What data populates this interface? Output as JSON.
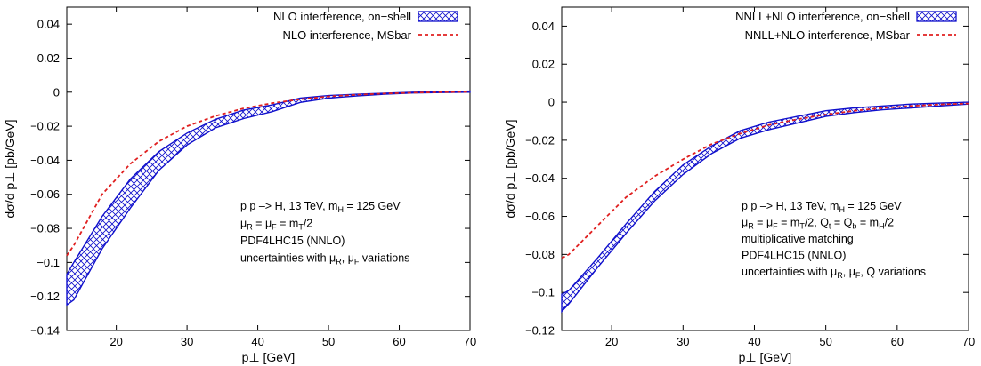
{
  "chart_data": [
    {
      "type": "line",
      "xlabel": "p⊥ [GeV]",
      "ylabel": "dσ/d p⊥ [pb/GeV]",
      "xlim": [
        13,
        70
      ],
      "ylim": [
        -0.14,
        0.05
      ],
      "xticks": [
        20,
        30,
        40,
        50,
        60,
        70
      ],
      "yticks": [
        -0.14,
        -0.12,
        -0.1,
        -0.08,
        -0.06,
        -0.04,
        -0.02,
        0,
        0.02,
        0.04
      ],
      "ytick_labels": [
        "−0.14",
        "−0.12",
        "−0.1",
        "−0.08",
        "−0.06",
        "−0.04",
        "−0.02",
        "0",
        "0.02",
        "0.04"
      ],
      "legend_position": "top-right",
      "series": [
        {
          "name": "NLO interference, on−shell",
          "kind": "band",
          "color": "#1010cc",
          "x": [
            13,
            14,
            18,
            22,
            26,
            30,
            34,
            38,
            42,
            46,
            50,
            54,
            58,
            62,
            66,
            70
          ],
          "lower": [
            -0.125,
            -0.122,
            -0.092,
            -0.068,
            -0.046,
            -0.031,
            -0.021,
            -0.0155,
            -0.0115,
            -0.006,
            -0.0035,
            -0.0022,
            -0.0012,
            -0.0005,
            -0.0002,
            0.0
          ],
          "upper": [
            -0.107,
            -0.1,
            -0.073,
            -0.051,
            -0.035,
            -0.024,
            -0.016,
            -0.0105,
            -0.0075,
            -0.0035,
            -0.002,
            -0.0012,
            -0.0006,
            0.0,
            0.0003,
            0.0006
          ]
        },
        {
          "name": "NLO interference, MSbar",
          "kind": "line",
          "style": "dashed",
          "color": "#e02020",
          "x": [
            13,
            14,
            18,
            22,
            26,
            30,
            34,
            38,
            42,
            46,
            50,
            54,
            58,
            62,
            66,
            70
          ],
          "y": [
            -0.096,
            -0.09,
            -0.06,
            -0.042,
            -0.029,
            -0.02,
            -0.014,
            -0.0095,
            -0.0065,
            -0.0042,
            -0.0025,
            -0.0015,
            -0.0008,
            -0.0003,
            0.0,
            0.0002
          ]
        }
      ],
      "annotation_lines": [
        {
          "parts": [
            [
              "p p –> H, 13 TeV, m",
              ""
            ],
            [
              "H",
              "sub"
            ],
            [
              " = 125 GeV",
              ""
            ]
          ]
        },
        {
          "parts": [
            [
              "μ",
              ""
            ],
            [
              "R",
              "sub"
            ],
            [
              " = μ",
              ""
            ],
            [
              "F",
              "sub"
            ],
            [
              " = m",
              ""
            ],
            [
              "T",
              "sub"
            ],
            [
              "/2",
              ""
            ]
          ]
        },
        {
          "parts": [
            [
              "PDF4LHC15 (NNLO)",
              ""
            ]
          ]
        },
        {
          "parts": [
            [
              "uncertainties with μ",
              ""
            ],
            [
              "R",
              "sub"
            ],
            [
              ", μ",
              ""
            ],
            [
              "F",
              "sub"
            ],
            [
              " variations",
              ""
            ]
          ]
        }
      ]
    },
    {
      "type": "line",
      "xlabel": "p⊥ [GeV]",
      "ylabel": "dσ/d p⊥ [pb/GeV]",
      "xlim": [
        13,
        70
      ],
      "ylim": [
        -0.12,
        0.05
      ],
      "xticks": [
        20,
        30,
        40,
        50,
        60,
        70
      ],
      "yticks": [
        -0.12,
        -0.1,
        -0.08,
        -0.06,
        -0.04,
        -0.02,
        0,
        0.02,
        0.04
      ],
      "ytick_labels": [
        "−0.12",
        "−0.1",
        "−0.08",
        "−0.06",
        "−0.04",
        "−0.02",
        "0",
        "0.02",
        "0.04"
      ],
      "legend_position": "top-right",
      "series": [
        {
          "name": "NNLL+NLO interference, on−shell",
          "kind": "band",
          "color": "#1010cc",
          "x": [
            13,
            14,
            18,
            22,
            26,
            30,
            34,
            38,
            42,
            46,
            50,
            54,
            58,
            62,
            66,
            70
          ],
          "lower": [
            -0.11,
            -0.106,
            -0.087,
            -0.069,
            -0.052,
            -0.038,
            -0.027,
            -0.019,
            -0.0145,
            -0.011,
            -0.0075,
            -0.0055,
            -0.004,
            -0.003,
            -0.002,
            -0.001
          ],
          "upper": [
            -0.101,
            -0.099,
            -0.082,
            -0.064,
            -0.047,
            -0.033,
            -0.023,
            -0.015,
            -0.0105,
            -0.0075,
            -0.0045,
            -0.003,
            -0.002,
            -0.001,
            -0.0005,
            0.0
          ]
        },
        {
          "name": "NNLL+NLO interference, MSbar",
          "kind": "line",
          "style": "dashed",
          "color": "#e02020",
          "x": [
            13,
            14,
            18,
            22,
            26,
            30,
            34,
            38,
            42,
            46,
            50,
            54,
            58,
            62,
            66,
            70
          ],
          "y": [
            -0.082,
            -0.08,
            -0.065,
            -0.05,
            -0.039,
            -0.03,
            -0.022,
            -0.0165,
            -0.012,
            -0.009,
            -0.0065,
            -0.0045,
            -0.003,
            -0.002,
            -0.0012,
            -0.0007
          ]
        }
      ],
      "annotation_lines": [
        {
          "parts": [
            [
              "p p –> H, 13 TeV, m",
              ""
            ],
            [
              "H",
              "sub"
            ],
            [
              " = 125 GeV",
              ""
            ]
          ]
        },
        {
          "parts": [
            [
              "μ",
              ""
            ],
            [
              "R",
              "sub"
            ],
            [
              " = μ",
              ""
            ],
            [
              "F",
              "sub"
            ],
            [
              " = m",
              ""
            ],
            [
              "T",
              "sub"
            ],
            [
              "/2, Q",
              ""
            ],
            [
              "t",
              "sub"
            ],
            [
              " = Q",
              ""
            ],
            [
              "b",
              "sub"
            ],
            [
              " = m",
              ""
            ],
            [
              "H",
              "sub"
            ],
            [
              "/2",
              ""
            ]
          ]
        },
        {
          "parts": [
            [
              "multiplicative matching",
              ""
            ]
          ]
        },
        {
          "parts": [
            [
              "PDF4LHC15 (NNLO)",
              ""
            ]
          ]
        },
        {
          "parts": [
            [
              "uncertainties with μ",
              ""
            ],
            [
              "R",
              "sub"
            ],
            [
              ", μ",
              ""
            ],
            [
              "F",
              "sub"
            ],
            [
              ", Q variations",
              ""
            ]
          ]
        }
      ]
    }
  ]
}
